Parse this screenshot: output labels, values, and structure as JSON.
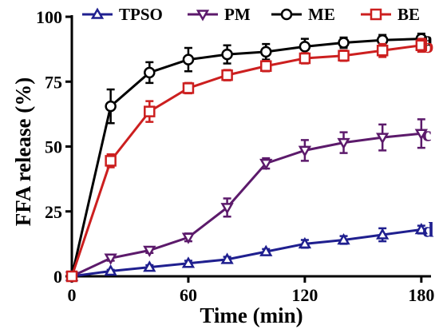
{
  "chart_data": {
    "type": "line",
    "title": "",
    "xlabel": "Time (min)",
    "ylabel": "FFA  release (%)",
    "xlim": [
      0,
      185
    ],
    "ylim": [
      0,
      100
    ],
    "xticks": [
      0,
      60,
      120,
      180
    ],
    "yticks": [
      0,
      25,
      50,
      75,
      100
    ],
    "grid": false,
    "legend_position": "top",
    "x": [
      0,
      20,
      40,
      60,
      80,
      100,
      120,
      140,
      160,
      180
    ],
    "series": [
      {
        "name": "TPSO",
        "marker": "triangle-up",
        "color": "#1f1f8f",
        "end_label": "d",
        "values": [
          0,
          2,
          3.5,
          5,
          6.5,
          9.5,
          12.5,
          14,
          16,
          18
        ],
        "errors": [
          0,
          0.5,
          0.8,
          1,
          1,
          1,
          1.5,
          1.5,
          2.5,
          1.5
        ]
      },
      {
        "name": "PM",
        "marker": "triangle-down",
        "color": "#5c1a6b",
        "end_label": "c",
        "values": [
          0,
          7,
          10,
          15,
          26.5,
          43.5,
          48.5,
          51.5,
          53.5,
          55
        ],
        "errors": [
          0,
          1,
          1,
          1.5,
          3.5,
          2,
          4,
          4,
          5,
          5.5
        ]
      },
      {
        "name": "ME",
        "marker": "circle",
        "color": "#000000",
        "end_label": "a",
        "values": [
          0,
          65.5,
          78.5,
          83.5,
          85.5,
          86.5,
          88.5,
          90,
          91,
          91.5
        ],
        "errors": [
          0,
          6.5,
          4,
          4.5,
          3.5,
          3,
          3,
          2,
          2,
          2
        ]
      },
      {
        "name": "BE",
        "marker": "square",
        "color": "#cc1f1f",
        "end_label": "b",
        "values": [
          0,
          44.5,
          63.5,
          72.5,
          77.5,
          81,
          84,
          85,
          87,
          89
        ],
        "errors": [
          0,
          2.5,
          4,
          2,
          2,
          2,
          2,
          2,
          2.5,
          2.5
        ]
      }
    ]
  }
}
